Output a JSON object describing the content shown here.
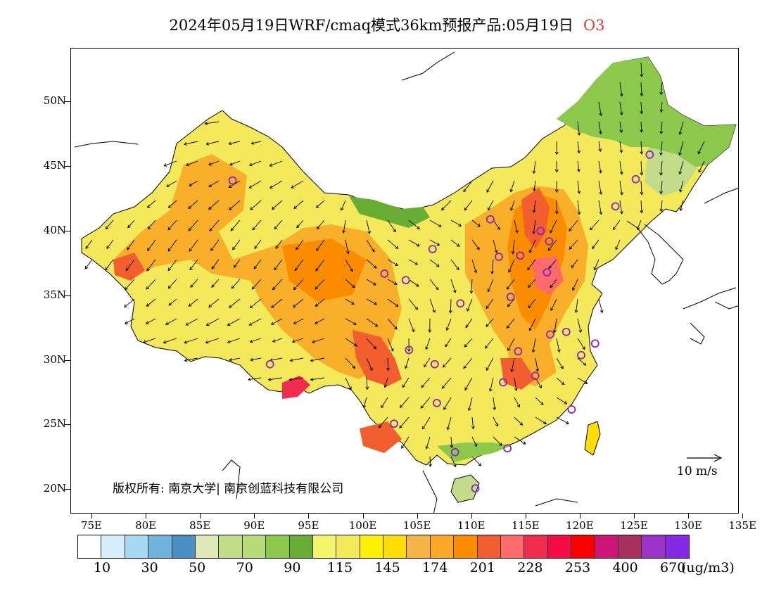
{
  "title": {
    "main": "2024年05月19日WRF/cmaq模式36km预报产品:05月19日",
    "species": "O3"
  },
  "axes": {
    "y_labels": [
      "50N",
      "45N",
      "40N",
      "35N",
      "30N",
      "25N",
      "20N"
    ],
    "x_labels": [
      "75E",
      "80E",
      "85E",
      "90E",
      "95E",
      "100E",
      "105E",
      "110E",
      "115E",
      "120E",
      "125E",
      "130E",
      "135E"
    ]
  },
  "copyright": "版权所有: 南京大学| 南京创蓝科技有限公司",
  "wind_key": {
    "label": "10 m/s"
  },
  "legend": {
    "colors": [
      "#ffffff",
      "#d6eefa",
      "#a7d8f2",
      "#6fb3dd",
      "#4a8fc4",
      "#dfe9b8",
      "#c3dc8a",
      "#b6dc7a",
      "#8cc84c",
      "#6aad35",
      "#f2f56a",
      "#f4e95a",
      "#fcf000",
      "#fede00",
      "#f6b446",
      "#fba826",
      "#fb8c00",
      "#f25e2e",
      "#fc6a6a",
      "#f22c4e",
      "#f50b46",
      "#fc0000",
      "#cc1577",
      "#a8305c",
      "#9c33c8",
      "#8727e6"
    ],
    "labels": [
      "10",
      "30",
      "50",
      "70",
      "90",
      "115",
      "145",
      "174",
      "201",
      "228",
      "253",
      "400",
      "670"
    ],
    "unit": "(ug/m3)"
  },
  "stations": [
    {
      "lon": 87.6,
      "lat": 43.8
    },
    {
      "lon": 91.1,
      "lat": 29.6
    },
    {
      "lon": 101.8,
      "lat": 36.6
    },
    {
      "lon": 103.8,
      "lat": 36.1
    },
    {
      "lon": 106.3,
      "lat": 38.5
    },
    {
      "lon": 104.1,
      "lat": 30.7
    },
    {
      "lon": 106.5,
      "lat": 29.6
    },
    {
      "lon": 106.7,
      "lat": 26.6
    },
    {
      "lon": 102.7,
      "lat": 25.0
    },
    {
      "lon": 108.4,
      "lat": 22.8
    },
    {
      "lon": 110.3,
      "lat": 20.0
    },
    {
      "lon": 113.3,
      "lat": 23.1
    },
    {
      "lon": 108.9,
      "lat": 34.3
    },
    {
      "lon": 111.7,
      "lat": 40.8
    },
    {
      "lon": 112.5,
      "lat": 37.9
    },
    {
      "lon": 114.5,
      "lat": 38.0
    },
    {
      "lon": 116.4,
      "lat": 39.9
    },
    {
      "lon": 117.2,
      "lat": 39.1
    },
    {
      "lon": 117.0,
      "lat": 36.7
    },
    {
      "lon": 113.6,
      "lat": 34.8
    },
    {
      "lon": 114.3,
      "lat": 30.6
    },
    {
      "lon": 112.9,
      "lat": 28.2
    },
    {
      "lon": 115.9,
      "lat": 28.7
    },
    {
      "lon": 117.3,
      "lat": 31.9
    },
    {
      "lon": 118.8,
      "lat": 32.1
    },
    {
      "lon": 120.2,
      "lat": 30.3
    },
    {
      "lon": 121.5,
      "lat": 31.2
    },
    {
      "lon": 119.3,
      "lat": 26.1
    },
    {
      "lon": 123.4,
      "lat": 41.8
    },
    {
      "lon": 125.3,
      "lat": 43.9
    },
    {
      "lon": 126.6,
      "lat": 45.8
    }
  ]
}
